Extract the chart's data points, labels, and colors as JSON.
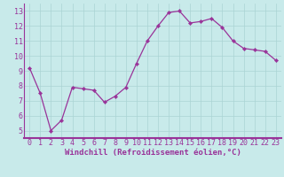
{
  "x": [
    0,
    1,
    2,
    3,
    4,
    5,
    6,
    7,
    8,
    9,
    10,
    11,
    12,
    13,
    14,
    15,
    16,
    17,
    18,
    19,
    20,
    21,
    22,
    23
  ],
  "y": [
    9.2,
    7.5,
    5.0,
    5.7,
    7.9,
    7.8,
    7.7,
    6.9,
    7.3,
    7.9,
    9.5,
    11.0,
    12.0,
    12.9,
    13.0,
    12.2,
    12.3,
    12.5,
    11.9,
    11.0,
    10.5,
    10.4,
    10.3,
    9.7
  ],
  "line_color": "#993399",
  "marker": "D",
  "marker_size": 2.2,
  "bg_color": "#c8eaea",
  "grid_color": "#aad4d4",
  "xlabel": "Windchill (Refroidissement éolien,°C)",
  "xlim": [
    -0.5,
    23.5
  ],
  "ylim": [
    4.5,
    13.5
  ],
  "yticks": [
    5,
    6,
    7,
    8,
    9,
    10,
    11,
    12,
    13
  ],
  "xticks": [
    0,
    1,
    2,
    3,
    4,
    5,
    6,
    7,
    8,
    9,
    10,
    11,
    12,
    13,
    14,
    15,
    16,
    17,
    18,
    19,
    20,
    21,
    22,
    23
  ],
  "xlabel_fontsize": 6.5,
  "tick_fontsize": 6.0,
  "axis_color": "#993399",
  "spine_color": "#993399",
  "spine_bottom_color": "#993399"
}
